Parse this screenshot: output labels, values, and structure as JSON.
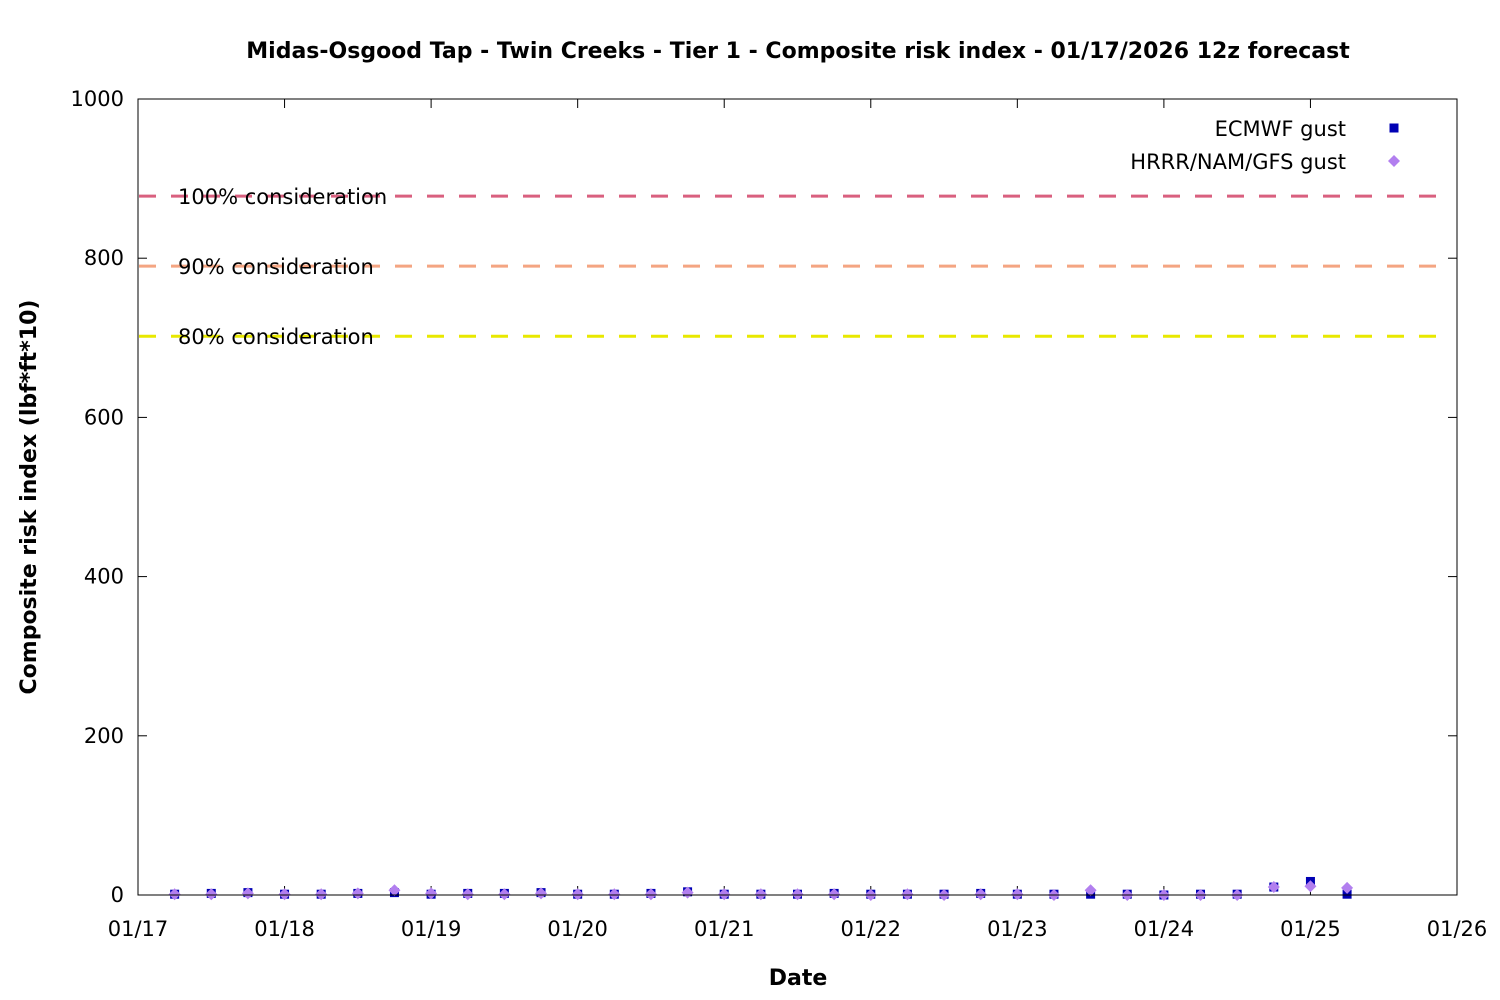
{
  "chart_data": {
    "type": "scatter",
    "title": "Midas-Osgood Tap - Twin Creeks - Tier 1 - Composite risk index - 01/17/2026 12z forecast",
    "xlabel": "Date",
    "ylabel": "Composite risk index (lbf*ft*10)",
    "x_range": [
      "01/17",
      "01/26"
    ],
    "ylim": [
      0,
      1000
    ],
    "x_ticks": [
      "01/17",
      "01/18",
      "01/19",
      "01/20",
      "01/21",
      "01/22",
      "01/23",
      "01/24",
      "01/25",
      "01/26"
    ],
    "y_ticks": [
      0,
      200,
      400,
      600,
      800,
      1000
    ],
    "legend_position": "top-right",
    "grid": false,
    "reference_lines": [
      {
        "label": "100% consideration",
        "value": 878,
        "color": "#d9607f"
      },
      {
        "label": "90% consideration",
        "value": 790,
        "color": "#f4a582"
      },
      {
        "label": "80% consideration",
        "value": 702,
        "color": "#e8e800"
      }
    ],
    "series": [
      {
        "name": "ECMWF gust",
        "marker": "square",
        "color": "#0000b4",
        "x": [
          "01/17 06z",
          "01/17 12z",
          "01/17 18z",
          "01/18 00z",
          "01/18 06z",
          "01/18 12z",
          "01/18 18z",
          "01/19 00z",
          "01/19 06z",
          "01/19 12z",
          "01/19 18z",
          "01/20 00z",
          "01/20 06z",
          "01/20 12z",
          "01/20 18z",
          "01/21 00z",
          "01/21 06z",
          "01/21 12z",
          "01/21 18z",
          "01/22 00z",
          "01/22 06z",
          "01/22 12z",
          "01/22 18z",
          "01/23 00z",
          "01/23 06z",
          "01/23 12z",
          "01/23 18z",
          "01/24 00z",
          "01/24 06z",
          "01/24 12z",
          "01/24 18z",
          "01/25 00z",
          "01/25 06z"
        ],
        "y": [
          1,
          2,
          3,
          1,
          1,
          2,
          3,
          1,
          2,
          2,
          3,
          1,
          1,
          2,
          4,
          1,
          1,
          1,
          2,
          1,
          1,
          1,
          2,
          1,
          1,
          1,
          1,
          0,
          1,
          1,
          10,
          17,
          1
        ]
      },
      {
        "name": "HRRR/NAM/GFS gust",
        "marker": "diamond",
        "color": "#b27fef",
        "x": [
          "01/17 06z",
          "01/17 12z",
          "01/17 18z",
          "01/18 00z",
          "01/18 06z",
          "01/18 12z",
          "01/18 18z",
          "01/19 00z",
          "01/19 06z",
          "01/19 12z",
          "01/19 18z",
          "01/20 00z",
          "01/20 06z",
          "01/20 12z",
          "01/20 18z",
          "01/21 00z",
          "01/21 06z",
          "01/21 12z",
          "01/21 18z",
          "01/22 00z",
          "01/22 06z",
          "01/22 12z",
          "01/22 18z",
          "01/23 00z",
          "01/23 06z",
          "01/23 12z",
          "01/23 18z",
          "01/24 00z",
          "01/24 06z",
          "01/24 12z",
          "01/24 18z",
          "01/25 00z",
          "01/25 06z"
        ],
        "y": [
          1,
          1,
          2,
          1,
          1,
          2,
          6,
          2,
          1,
          1,
          2,
          1,
          1,
          1,
          3,
          1,
          1,
          1,
          1,
          0,
          1,
          0,
          1,
          1,
          0,
          6,
          0,
          0,
          0,
          0,
          10,
          11,
          9
        ]
      }
    ]
  }
}
